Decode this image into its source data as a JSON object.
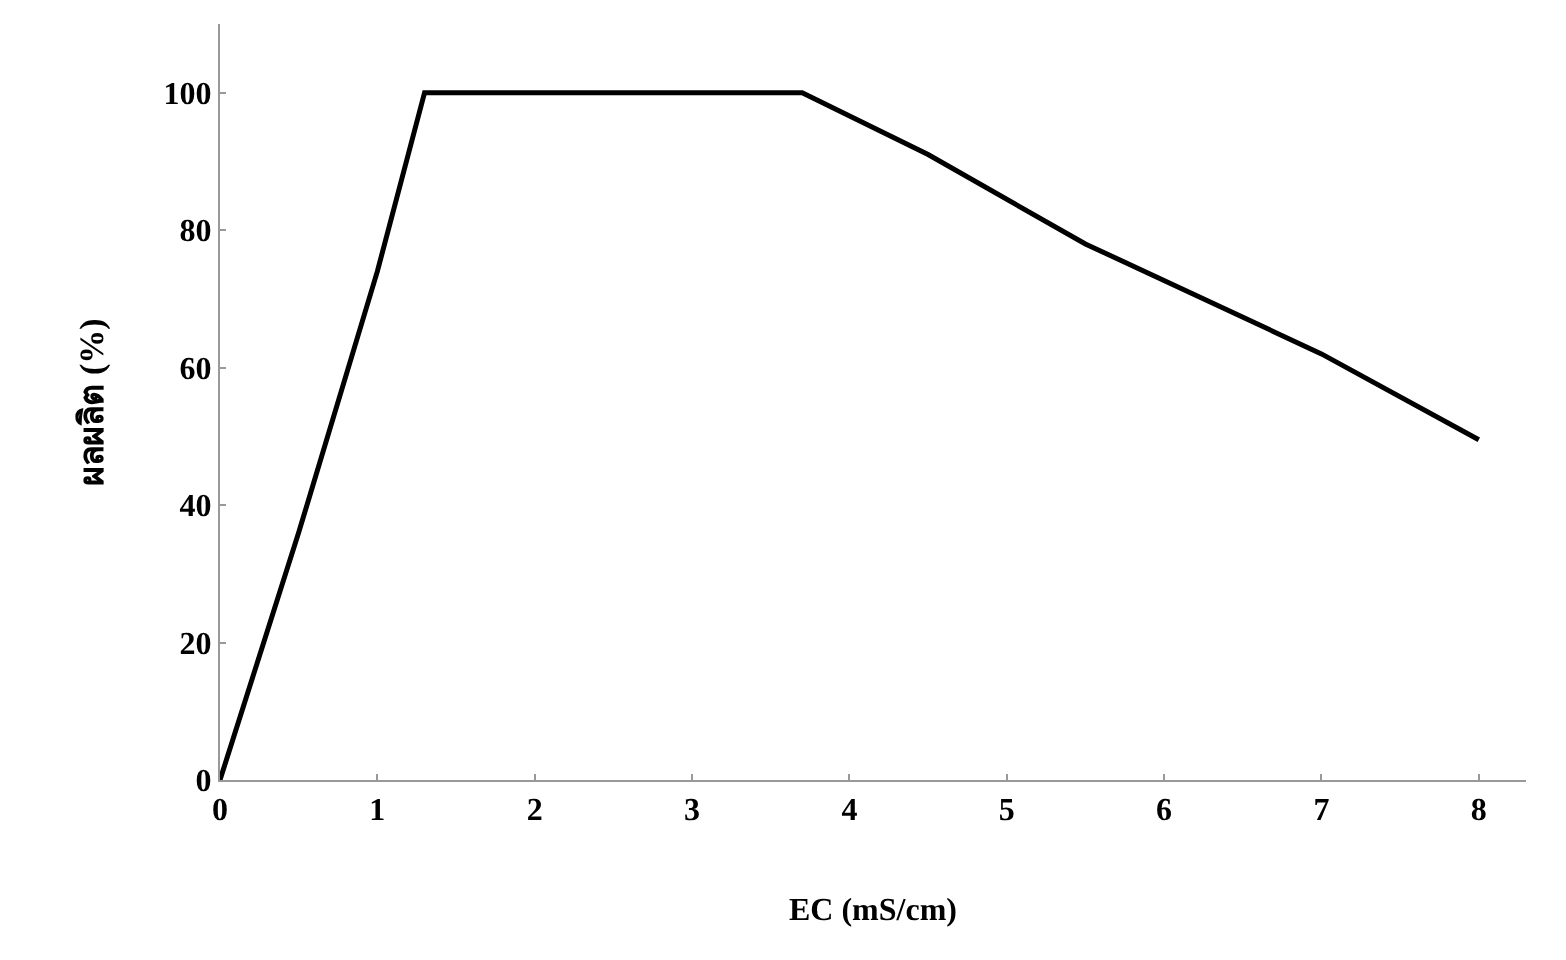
{
  "chart_data": {
    "type": "line",
    "xlabel": "EC (mS/cm)",
    "ylabel": "ผลผลิต (%)",
    "x": [
      0,
      0.5,
      1,
      1.3,
      3.7,
      4.5,
      5.5,
      7,
      8
    ],
    "series": [
      {
        "color": "#000000",
        "values": [
          0,
          36,
          74,
          100,
          100,
          91,
          78,
          62,
          49.5
        ]
      }
    ],
    "xlim": [
      0,
      8.3
    ],
    "xticks": [
      0,
      1,
      2,
      3,
      4,
      5,
      6,
      7,
      8
    ],
    "ylim": [
      0,
      110
    ],
    "yticks": [
      0,
      20,
      40,
      60,
      80,
      100
    ],
    "marker": "none",
    "line_style": "solid"
  }
}
